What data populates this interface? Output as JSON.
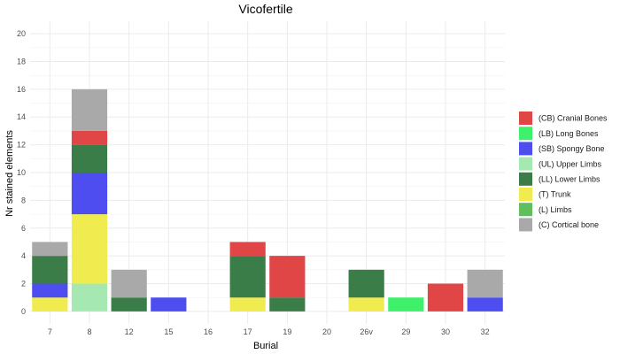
{
  "chart_data": {
    "type": "bar",
    "stacked": true,
    "title": "Vicofertile",
    "xlabel": "Burial",
    "ylabel": "Nr stained elements",
    "ylim": [
      -0.9,
      20.9
    ],
    "yticks": [
      0,
      2,
      4,
      6,
      8,
      10,
      12,
      14,
      16,
      18,
      20
    ],
    "grid": true,
    "legend_position": "right",
    "categories": [
      "7",
      "8",
      "12",
      "15",
      "16",
      "17",
      "19",
      "20",
      "26v",
      "29",
      "30",
      "32"
    ],
    "stack_order": [
      "(UL) Upper Limbs",
      "(T) Trunk",
      "(SB) Spongy Bone",
      "(LL) Lower Limbs",
      "(LB) Long Bones",
      "(CB) Cranial Bones",
      "(C) Cortical bone",
      "(L) Limbs"
    ],
    "series": [
      {
        "name": "(CB) Cranial Bones",
        "color": "#e04646",
        "values": [
          0,
          1,
          0,
          0,
          0,
          1,
          3,
          0,
          0,
          0,
          2,
          0
        ]
      },
      {
        "name": "(LB) Long Bones",
        "color": "#3ef06a",
        "values": [
          0,
          0,
          0,
          0,
          0,
          0,
          0,
          0,
          0,
          1,
          0,
          0
        ]
      },
      {
        "name": "(SB) Spongy Bone",
        "color": "#4d4df0",
        "values": [
          1,
          3,
          0,
          1,
          0,
          0,
          0,
          0,
          0,
          0,
          0,
          1
        ]
      },
      {
        "name": "(UL) Upper Limbs",
        "color": "#a6e8b2",
        "values": [
          0,
          2,
          0,
          0,
          0,
          0,
          0,
          0,
          0,
          0,
          0,
          0
        ]
      },
      {
        "name": "(LL) Lower Limbs",
        "color": "#3a7d48",
        "values": [
          2,
          2,
          1,
          0,
          0,
          3,
          1,
          0,
          2,
          0,
          0,
          0
        ]
      },
      {
        "name": "(T) Trunk",
        "color": "#f0ec50",
        "values": [
          1,
          5,
          0,
          0,
          0,
          1,
          0,
          0,
          1,
          0,
          0,
          0
        ]
      },
      {
        "name": "(L) Limbs",
        "color": "#5fbf5f",
        "values": [
          0,
          0,
          0,
          0,
          0,
          0,
          0,
          0,
          0,
          0,
          0,
          0
        ]
      },
      {
        "name": "(C) Cortical bone",
        "color": "#a9a9a9",
        "values": [
          1,
          3,
          2,
          0,
          0,
          0,
          0,
          0,
          0,
          0,
          0,
          2
        ]
      }
    ]
  }
}
